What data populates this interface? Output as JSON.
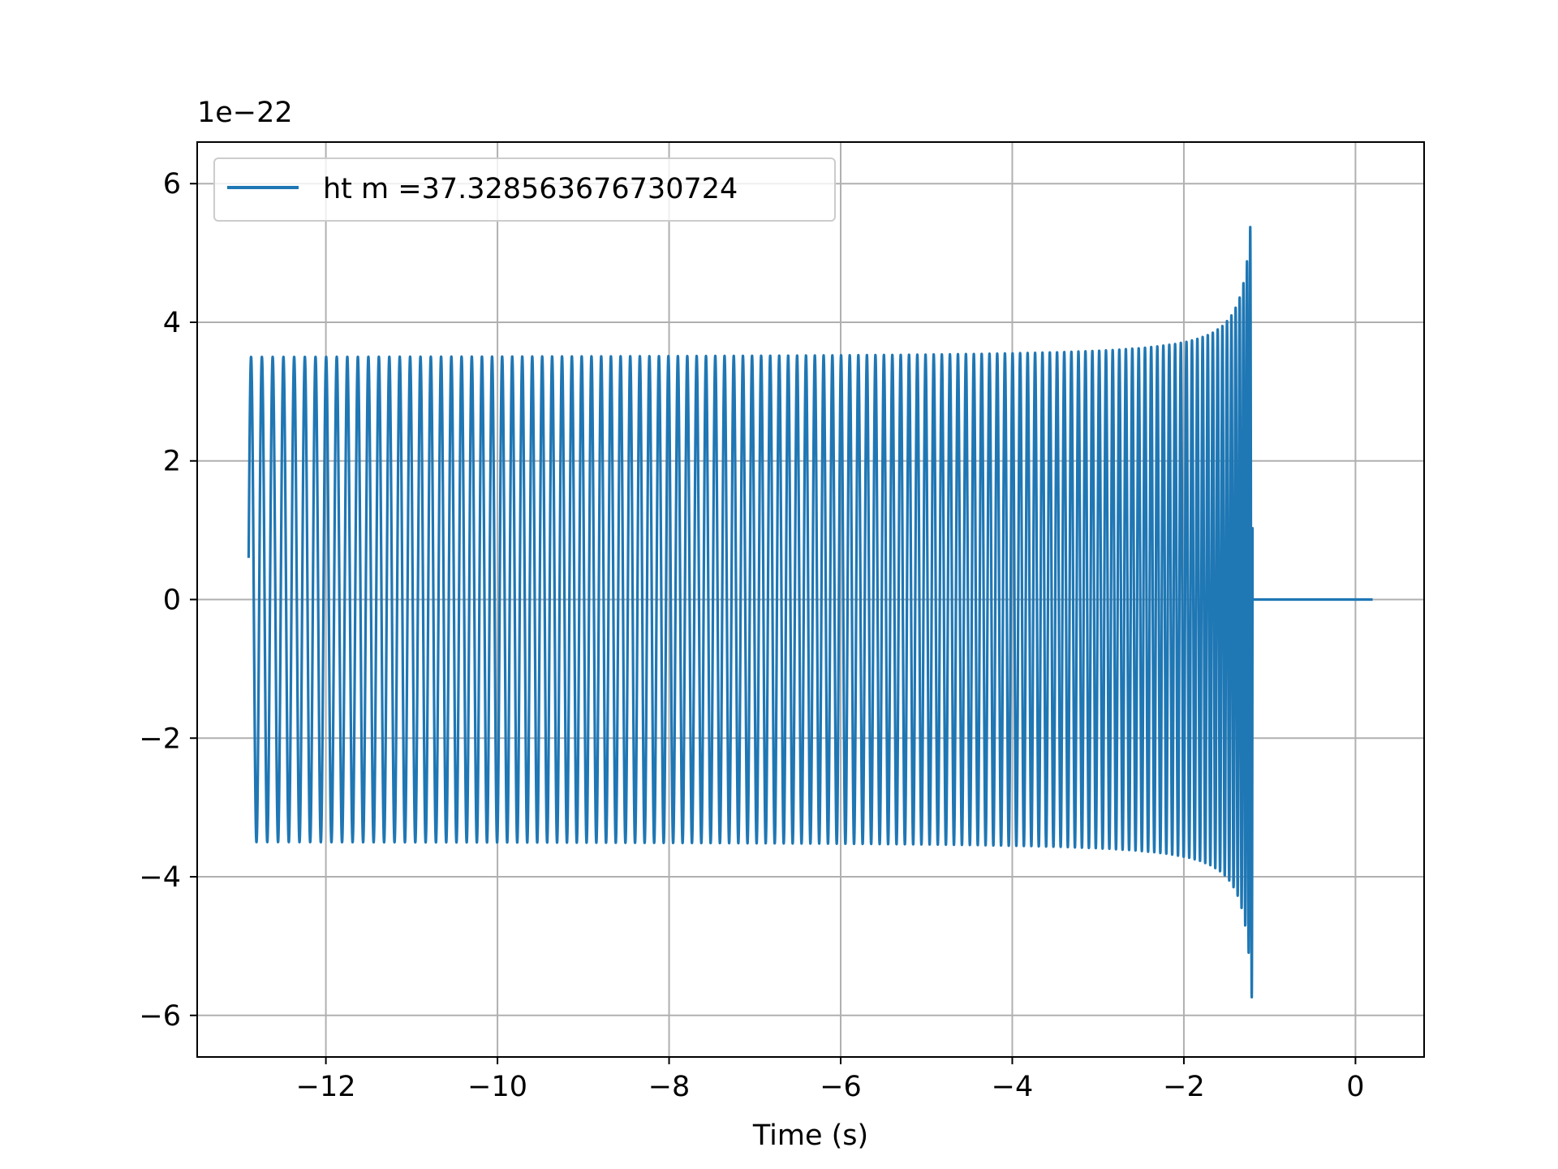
{
  "chart_data": {
    "type": "line",
    "title": "",
    "xlabel": "Time (s)",
    "ylabel": "",
    "offset_text": "1e−22",
    "xlim": [
      -13.5,
      0.8
    ],
    "ylim": [
      -6.6,
      6.6
    ],
    "xticks": [
      -12,
      -10,
      -8,
      -6,
      -4,
      -2,
      0
    ],
    "yticks": [
      -6,
      -4,
      -2,
      0,
      2,
      4,
      6
    ],
    "xtick_labels": [
      "−12",
      "−10",
      "−8",
      "−6",
      "−4",
      "−2",
      "0"
    ],
    "ytick_labels": [
      "−6",
      "−4",
      "−2",
      "0",
      "2",
      "4",
      "6"
    ],
    "grid": true,
    "legend_position": "top-left",
    "series": [
      {
        "name": "ht m =37.328563676730724",
        "color": "#1f77b4",
        "waveform": "chirp",
        "t_start": -12.9,
        "t_merger": -1.2,
        "t_end": 0.2,
        "start_value": 0.6,
        "initial_amplitude": 3.5,
        "peak_amplitude": 6.0,
        "num_cycles": 122,
        "post_merger_value": 0
      }
    ]
  }
}
